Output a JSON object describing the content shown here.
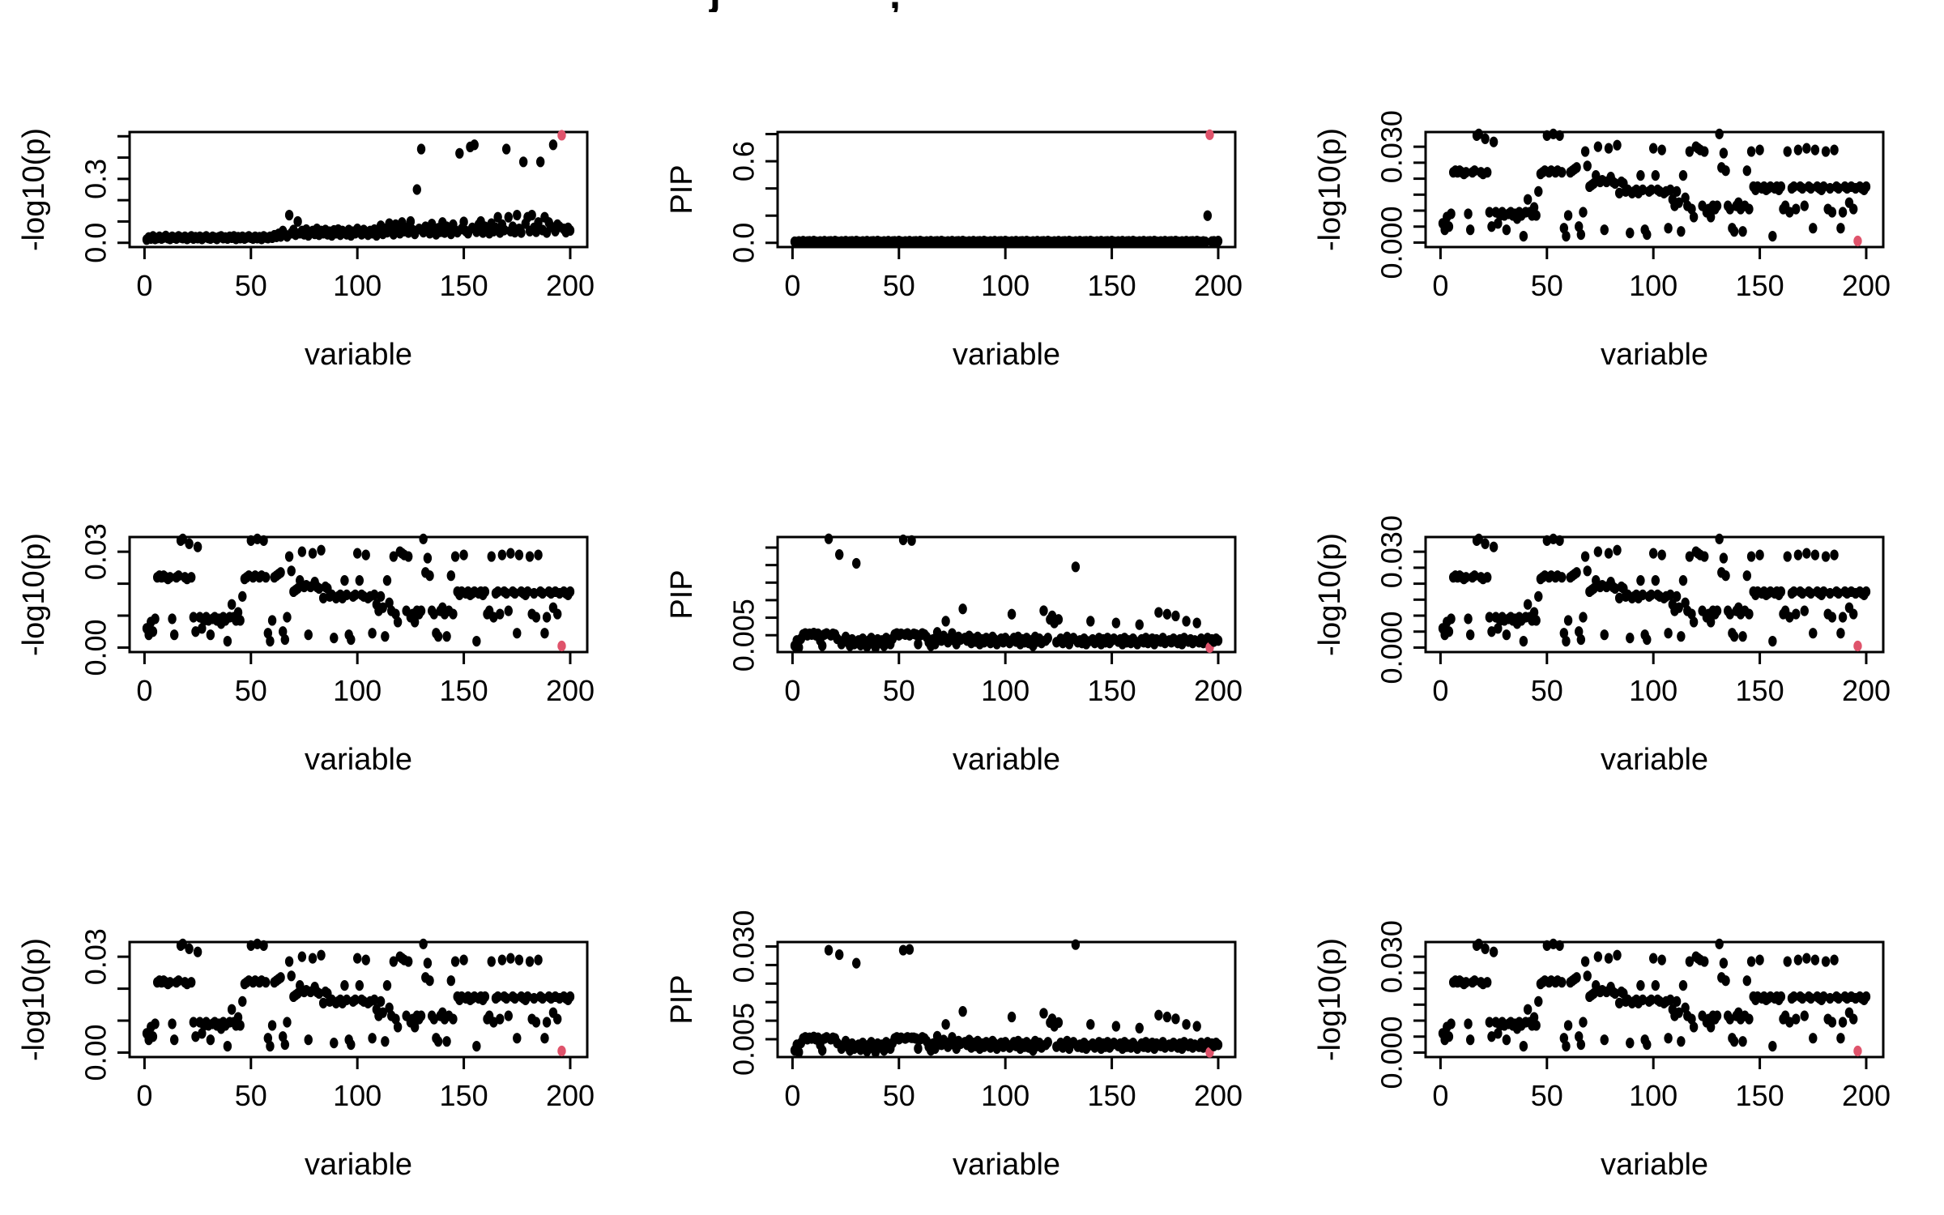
{
  "title_fragments": {
    "j_descender": "j",
    "comma": ","
  },
  "colors": {
    "point": "#000000",
    "highlight": "#DF536B",
    "axis": "#000000",
    "background": "#ffffff"
  },
  "series": {
    "A": {
      "scale": 0.0001,
      "x_start": 1,
      "y": [
        60,
        40,
        80,
        50,
        90,
        220,
        225,
        220,
        225,
        220,
        215,
        220,
        90,
        40,
        220,
        225,
        335,
        340,
        220,
        215,
        325,
        220,
        95,
        50,
        315,
        95,
        60,
        85,
        95,
        85,
        40,
        90,
        95,
        85,
        90,
        75,
        95,
        85,
        20,
        95,
        135,
        95,
        85,
        110,
        85,
        160,
        215,
        220,
        225,
        335,
        220,
        225,
        340,
        220,
        225,
        335,
        220,
        45,
        20,
        85,
        220,
        225,
        230,
        235,
        50,
        25,
        95,
        285,
        240,
        175,
        180,
        185,
        210,
        300,
        190,
        195,
        40,
        190,
        295,
        205,
        190,
        185,
        305,
        155,
        190,
        185,
        160,
        165,
        30,
        155,
        160,
        165,
        155,
        210,
        165,
        40,
        25,
        160,
        165,
        295,
        210,
        165,
        160,
        290,
        155,
        160,
        45,
        165,
        135,
        115,
        160,
        125,
        35,
        210,
        140,
        115,
        285,
        105,
        80,
        300,
        295,
        290,
        115,
        285,
        95,
        105,
        80,
        115,
        105,
        115,
        340,
        235,
        280,
        225,
        115,
        105,
        45,
        35,
        115,
        125,
        105,
        35,
        115,
        225,
        105,
        285,
        175,
        165,
        175,
        290,
        170,
        175,
        165,
        170,
        175,
        20,
        170,
        175,
        165,
        175,
        105,
        115,
        285,
        95,
        170,
        175,
        105,
        290,
        175,
        170,
        115,
        295,
        175,
        170,
        45,
        290,
        175,
        170,
        165,
        175,
        285,
        105,
        170,
        95,
        290,
        175,
        170,
        45,
        95,
        175,
        170,
        125,
        175,
        105,
        170,
        5,
        175,
        170,
        165,
        175
      ]
    },
    "B": {
      "scale": 0.001,
      "x_start": 1,
      "y": [
        15,
        25,
        20,
        30,
        18,
        22,
        28,
        20,
        25,
        32,
        22,
        18,
        28,
        24,
        20,
        30,
        25,
        22,
        28,
        18,
        24,
        30,
        20,
        26,
        22,
        28,
        18,
        25,
        30,
        22,
        20,
        28,
        24,
        18,
        26,
        30,
        22,
        25,
        20,
        28,
        24,
        30,
        18,
        26,
        22,
        28,
        20,
        25,
        30,
        24,
        20,
        28,
        22,
        26,
        18,
        30,
        25,
        22,
        28,
        24,
        35,
        28,
        42,
        30,
        55,
        38,
        30,
        130,
        45,
        60,
        38,
        100,
        45,
        55,
        40,
        62,
        35,
        48,
        55,
        42,
        65,
        38,
        55,
        45,
        60,
        40,
        52,
        35,
        58,
        45,
        62,
        38,
        55,
        48,
        40,
        60,
        35,
        52,
        45,
        65,
        55,
        40,
        60,
        48,
        38,
        55,
        45,
        62,
        35,
        58,
        80,
        42,
        65,
        50,
        90,
        55,
        40,
        85,
        60,
        45,
        95,
        55,
        70,
        48,
        100,
        60,
        42,
        250,
        65,
        440,
        50,
        75,
        58,
        45,
        88,
        55,
        40,
        68,
        52,
        95,
        48,
        75,
        55,
        42,
        85,
        58,
        50,
        420,
        65,
        98,
        55,
        45,
        450,
        70,
        460,
        52,
        85,
        100,
        48,
        75,
        58,
        45,
        90,
        55,
        70,
        120,
        48,
        85,
        60,
        440,
        120,
        55,
        75,
        50,
        130,
        65,
        48,
        380,
        90,
        120,
        55,
        130,
        70,
        52,
        95,
        380,
        60,
        120,
        48,
        95,
        75,
        460,
        55,
        85,
        75,
        505,
        65,
        50,
        70,
        58
      ]
    },
    "C": {
      "scale": 0.001,
      "x_start": 1,
      "y": [
        8,
        6,
        10,
        7,
        12,
        5,
        9,
        11,
        6,
        13,
        8,
        6,
        10,
        7,
        12,
        5,
        9,
        11,
        6,
        13,
        8,
        6,
        10,
        7,
        12,
        5,
        9,
        11,
        6,
        13,
        8,
        6,
        10,
        7,
        12,
        5,
        9,
        11,
        6,
        13,
        8,
        6,
        10,
        7,
        12,
        5,
        9,
        11,
        6,
        13,
        8,
        6,
        10,
        7,
        12,
        5,
        9,
        11,
        6,
        13,
        8,
        6,
        10,
        7,
        12,
        5,
        9,
        11,
        6,
        13,
        8,
        6,
        10,
        7,
        12,
        5,
        9,
        11,
        6,
        13,
        8,
        6,
        10,
        7,
        12,
        5,
        9,
        11,
        6,
        13,
        8,
        6,
        10,
        7,
        12,
        5,
        9,
        11,
        6,
        13,
        8,
        6,
        10,
        7,
        12,
        5,
        9,
        11,
        6,
        13,
        8,
        6,
        10,
        7,
        12,
        5,
        9,
        11,
        6,
        13,
        8,
        6,
        10,
        7,
        12,
        5,
        9,
        11,
        6,
        13,
        8,
        6,
        10,
        7,
        12,
        5,
        9,
        11,
        6,
        13,
        8,
        6,
        10,
        7,
        12,
        5,
        9,
        11,
        6,
        13,
        8,
        6,
        10,
        7,
        12,
        5,
        9,
        11,
        6,
        13,
        8,
        6,
        10,
        7,
        12,
        5,
        9,
        11,
        6,
        13,
        8,
        6,
        10,
        7,
        12,
        5,
        9,
        11,
        6,
        13,
        8,
        6,
        10,
        7,
        12,
        5,
        9,
        11,
        6,
        13,
        8,
        6,
        10,
        7,
        200,
        795,
        9,
        11,
        6,
        13
      ]
    },
    "D": {
      "scale": 0.0001,
      "x_start": 1,
      "y": [
        20,
        35,
        15,
        40,
        52,
        55,
        50,
        54,
        52,
        56,
        50,
        54,
        35,
        20,
        52,
        55,
        325,
        50,
        54,
        52,
        40,
        280,
        25,
        35,
        45,
        30,
        20,
        38,
        25,
        255,
        35,
        22,
        40,
        28,
        18,
        35,
        42,
        25,
        15,
        38,
        28,
        35,
        20,
        42,
        30,
        25,
        40,
        52,
        55,
        50,
        54,
        322,
        52,
        55,
        50,
        320,
        54,
        52,
        25,
        50,
        55,
        52,
        45,
        30,
        20,
        38,
        25,
        58,
        42,
        35,
        48,
        90,
        30,
        42,
        55,
        35,
        25,
        45,
        38,
        125,
        42,
        35,
        48,
        28,
        40,
        32,
        45,
        25,
        38,
        30,
        42,
        35,
        28,
        45,
        38,
        25,
        32,
        40,
        30,
        42,
        35,
        28,
        110,
        42,
        32,
        45,
        25,
        38,
        30,
        42,
        28,
        35,
        20,
        45,
        32,
        40,
        28,
        120,
        35,
        42,
        95,
        105,
        85,
        30,
        95,
        40,
        28,
        35,
        45,
        25,
        38,
        42,
        245,
        30,
        35,
        28,
        40,
        25,
        32,
        90,
        38,
        28,
        35,
        42,
        25,
        38,
        30,
        42,
        28,
        35,
        40,
        85,
        32,
        38,
        25,
        42,
        30,
        35,
        28,
        40,
        32,
        25,
        80,
        38,
        30,
        42,
        28,
        35,
        40,
        25,
        38,
        115,
        32,
        42,
        28,
        110,
        35,
        30,
        40,
        105,
        28,
        38,
        25,
        42,
        90,
        32,
        38,
        28,
        35,
        85,
        30,
        40,
        28,
        35,
        42,
        15,
        38,
        32,
        40,
        35
      ]
    },
    "E": {
      "base": "D",
      "overrides": {
        "17": 290,
        "22": 278,
        "30": 255,
        "52": 290,
        "55": 292,
        "56": 54,
        "133": 305
      }
    }
  },
  "chart_data": [
    {
      "type": "scatter",
      "name": "row1-col1",
      "title": "",
      "xlabel": "variable",
      "ylabel": "-log10(p)",
      "series": "B",
      "red_x": 196,
      "xlim": [
        -7,
        208
      ],
      "ylim": [
        -20,
        520
      ],
      "xticks": [
        0,
        50,
        100,
        150,
        200
      ],
      "yticks": [
        0,
        100,
        200,
        300,
        400,
        500
      ],
      "ytick_labels": {
        "0": "0.0",
        "300": "0.3"
      },
      "grid": false,
      "legend": "none"
    },
    {
      "type": "scatter",
      "name": "row1-col2",
      "title": "",
      "xlabel": "variable",
      "ylabel": "PIP",
      "series": "C",
      "red_x": 196,
      "xlim": [
        -7,
        208
      ],
      "ylim": [
        -31,
        815
      ],
      "xticks": [
        0,
        50,
        100,
        150,
        200
      ],
      "yticks": [
        0,
        200,
        400,
        600,
        800
      ],
      "ytick_labels": {
        "0": "0.0",
        "600": "0.6"
      },
      "grid": false,
      "legend": "none"
    },
    {
      "type": "scatter",
      "name": "row1-col3",
      "title": "",
      "xlabel": "variable",
      "ylabel": "-log10(p)",
      "series": "A",
      "red_x": 196,
      "xlim": [
        -7,
        208
      ],
      "ylim": [
        -14,
        346
      ],
      "xticks": [
        0,
        50,
        100,
        150,
        200
      ],
      "yticks": [
        0,
        50,
        100,
        150,
        200,
        250,
        300
      ],
      "ytick_labels": {
        "0": "0.000",
        "300": "0.030"
      },
      "grid": false,
      "legend": "none"
    },
    {
      "type": "scatter",
      "name": "row2-col1",
      "title": "",
      "xlabel": "variable",
      "ylabel": "-log10(p)",
      "series": "A",
      "red_x": 196,
      "xlim": [
        -7,
        208
      ],
      "ylim": [
        -14,
        346
      ],
      "xticks": [
        0,
        50,
        100,
        150,
        200
      ],
      "yticks": [
        0,
        100,
        200,
        300
      ],
      "ytick_labels": {
        "0": "0.00",
        "300": "0.03"
      },
      "grid": false,
      "legend": "none"
    },
    {
      "type": "scatter",
      "name": "row2-col2",
      "title": "",
      "xlabel": "variable",
      "ylabel": "PIP",
      "series": "D",
      "red_x": 196,
      "xlim": [
        -7,
        208
      ],
      "ylim": [
        2,
        330
      ],
      "xticks": [
        0,
        50,
        100,
        150,
        200
      ],
      "yticks": [
        50,
        100,
        150,
        200,
        250,
        300
      ],
      "ytick_labels": {
        "50": "0.005"
      },
      "grid": false,
      "legend": "none"
    },
    {
      "type": "scatter",
      "name": "row2-col3",
      "title": "",
      "xlabel": "variable",
      "ylabel": "-log10(p)",
      "series": "A",
      "red_x": 196,
      "xlim": [
        -7,
        208
      ],
      "ylim": [
        -14,
        346
      ],
      "xticks": [
        0,
        50,
        100,
        150,
        200
      ],
      "yticks": [
        0,
        50,
        100,
        150,
        200,
        250,
        300
      ],
      "ytick_labels": {
        "0": "0.000",
        "300": "0.030"
      },
      "grid": false,
      "legend": "none"
    },
    {
      "type": "scatter",
      "name": "row3-col1",
      "title": "",
      "xlabel": "variable",
      "ylabel": "-log10(p)",
      "series": "A",
      "red_x": 196,
      "xlim": [
        -7,
        208
      ],
      "ylim": [
        -14,
        346
      ],
      "xticks": [
        0,
        50,
        100,
        150,
        200
      ],
      "yticks": [
        0,
        100,
        200,
        300
      ],
      "ytick_labels": {
        "0": "0.00",
        "300": "0.03"
      },
      "grid": false,
      "legend": "none"
    },
    {
      "type": "scatter",
      "name": "row3-col2",
      "title": "",
      "xlabel": "variable",
      "ylabel": "PIP",
      "series": "E",
      "red_x": 196,
      "xlim": [
        -7,
        208
      ],
      "ylim": [
        2,
        312
      ],
      "xticks": [
        0,
        50,
        100,
        150,
        200
      ],
      "yticks": [
        50,
        100,
        150,
        200,
        250,
        300
      ],
      "ytick_labels": {
        "50": "0.005",
        "300": "0.030"
      },
      "grid": false,
      "legend": "none"
    },
    {
      "type": "scatter",
      "name": "row3-col3",
      "title": "",
      "xlabel": "variable",
      "ylabel": "-log10(p)",
      "series": "A",
      "red_x": 196,
      "xlim": [
        -7,
        208
      ],
      "ylim": [
        -14,
        346
      ],
      "xticks": [
        0,
        50,
        100,
        150,
        200
      ],
      "yticks": [
        0,
        50,
        100,
        150,
        200,
        250,
        300
      ],
      "ytick_labels": {
        "0": "0.000",
        "300": "0.030"
      },
      "grid": false,
      "legend": "none"
    }
  ]
}
